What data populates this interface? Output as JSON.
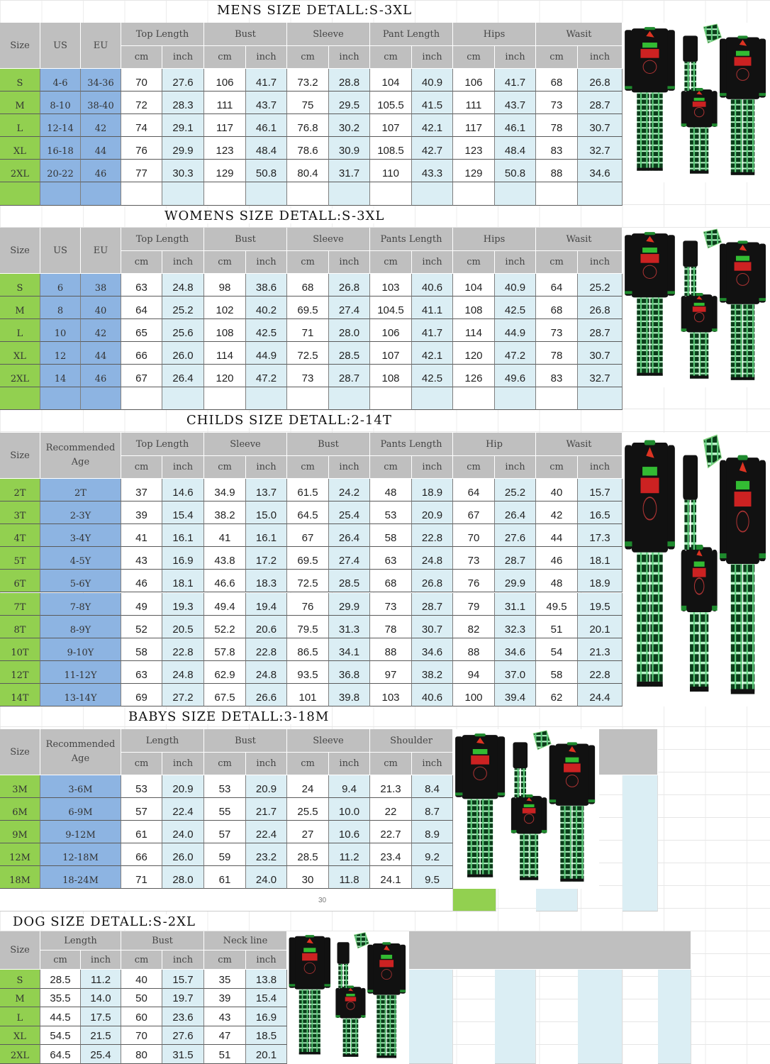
{
  "colors": {
    "header": "#bfbfbf",
    "size_column": "#92d050",
    "us_eu_column": "#8db4e2",
    "inch_column": "#dbeef4"
  },
  "page_number": "30",
  "tables": {
    "mens": {
      "title": "MENS SIZE DETALL:S-3XL",
      "fixed_headers": [
        "Size",
        "US",
        "EU"
      ],
      "groups": [
        "Top Length",
        "Bust",
        "Sleeve",
        "Pant Length",
        "Hips",
        "Wasit"
      ],
      "units": [
        "cm",
        "inch"
      ],
      "rows": [
        [
          "S",
          "4-6",
          "34-36",
          "70",
          "27.6",
          "106",
          "41.7",
          "73.2",
          "28.8",
          "104",
          "40.9",
          "106",
          "41.7",
          "68",
          "26.8"
        ],
        [
          "M",
          "8-10",
          "38-40",
          "72",
          "28.3",
          "111",
          "43.7",
          "75",
          "29.5",
          "105.5",
          "41.5",
          "111",
          "43.7",
          "73",
          "28.7"
        ],
        [
          "L",
          "12-14",
          "42",
          "74",
          "29.1",
          "117",
          "46.1",
          "76.8",
          "30.2",
          "107",
          "42.1",
          "117",
          "46.1",
          "78",
          "30.7"
        ],
        [
          "XL",
          "16-18",
          "44",
          "76",
          "29.9",
          "123",
          "48.4",
          "78.6",
          "30.9",
          "108.5",
          "42.7",
          "123",
          "48.4",
          "83",
          "32.7"
        ],
        [
          "2XL",
          "20-22",
          "46",
          "77",
          "30.3",
          "129",
          "50.8",
          "80.4",
          "31.7",
          "110",
          "43.3",
          "129",
          "50.8",
          "88",
          "34.6"
        ]
      ]
    },
    "womens": {
      "title": "WOMENS SIZE DETALL:S-3XL",
      "fixed_headers": [
        "Size",
        "US",
        "EU"
      ],
      "groups": [
        "Top Length",
        "Bust",
        "Sleeve",
        "Pants Length",
        "Hips",
        "Wasit"
      ],
      "units": [
        "cm",
        "inch"
      ],
      "rows": [
        [
          "S",
          "6",
          "38",
          "63",
          "24.8",
          "98",
          "38.6",
          "68",
          "26.8",
          "103",
          "40.6",
          "104",
          "40.9",
          "64",
          "25.2"
        ],
        [
          "M",
          "8",
          "40",
          "64",
          "25.2",
          "102",
          "40.2",
          "69.5",
          "27.4",
          "104.5",
          "41.1",
          "108",
          "42.5",
          "68",
          "26.8"
        ],
        [
          "L",
          "10",
          "42",
          "65",
          "25.6",
          "108",
          "42.5",
          "71",
          "28.0",
          "106",
          "41.7",
          "114",
          "44.9",
          "73",
          "28.7"
        ],
        [
          "XL",
          "12",
          "44",
          "66",
          "26.0",
          "114",
          "44.9",
          "72.5",
          "28.5",
          "107",
          "42.1",
          "120",
          "47.2",
          "78",
          "30.7"
        ],
        [
          "2XL",
          "14",
          "46",
          "67",
          "26.4",
          "120",
          "47.2",
          "73",
          "28.7",
          "108",
          "42.5",
          "126",
          "49.6",
          "83",
          "32.7"
        ]
      ]
    },
    "childs": {
      "title": "CHILDS SIZE DETALL:2-14T",
      "fixed_headers": [
        "Size",
        "Recommended Age"
      ],
      "groups": [
        "Top Length",
        "Sleeve",
        "Bust",
        "Pants Length",
        "Hip",
        "Wasit"
      ],
      "units": [
        "cm",
        "inch"
      ],
      "rows": [
        [
          "2T",
          "2T",
          "37",
          "14.6",
          "34.9",
          "13.7",
          "61.5",
          "24.2",
          "48",
          "18.9",
          "64",
          "25.2",
          "40",
          "15.7"
        ],
        [
          "3T",
          "2-3Y",
          "39",
          "15.4",
          "38.2",
          "15.0",
          "64.5",
          "25.4",
          "53",
          "20.9",
          "67",
          "26.4",
          "42",
          "16.5"
        ],
        [
          "4T",
          "3-4Y",
          "41",
          "16.1",
          "41",
          "16.1",
          "67",
          "26.4",
          "58",
          "22.8",
          "70",
          "27.6",
          "44",
          "17.3"
        ],
        [
          "5T",
          "4-5Y",
          "43",
          "16.9",
          "43.8",
          "17.2",
          "69.5",
          "27.4",
          "63",
          "24.8",
          "73",
          "28.7",
          "46",
          "18.1"
        ],
        [
          "6T",
          "5-6Y",
          "46",
          "18.1",
          "46.6",
          "18.3",
          "72.5",
          "28.5",
          "68",
          "26.8",
          "76",
          "29.9",
          "48",
          "18.9"
        ],
        [
          "7T",
          "7-8Y",
          "49",
          "19.3",
          "49.4",
          "19.4",
          "76",
          "29.9",
          "73",
          "28.7",
          "79",
          "31.1",
          "49.5",
          "19.5"
        ],
        [
          "8T",
          "8-9Y",
          "52",
          "20.5",
          "52.2",
          "20.6",
          "79.5",
          "31.3",
          "78",
          "30.7",
          "82",
          "32.3",
          "51",
          "20.1"
        ],
        [
          "10T",
          "9-10Y",
          "58",
          "22.8",
          "57.8",
          "22.8",
          "86.5",
          "34.1",
          "88",
          "34.6",
          "88",
          "34.6",
          "54",
          "21.3"
        ],
        [
          "12T",
          "11-12Y",
          "63",
          "24.8",
          "62.9",
          "24.8",
          "93.5",
          "36.8",
          "97",
          "38.2",
          "94",
          "37.0",
          "58",
          "22.8"
        ],
        [
          "14T",
          "13-14Y",
          "69",
          "27.2",
          "67.5",
          "26.6",
          "101",
          "39.8",
          "103",
          "40.6",
          "100",
          "39.4",
          "62",
          "24.4"
        ]
      ]
    },
    "babys": {
      "title": "BABYS SIZE DETALL:3-18M",
      "fixed_headers": [
        "Size",
        "Recommended Age"
      ],
      "groups": [
        "Length",
        "Bust",
        "Sleeve",
        "Shoulder"
      ],
      "units": [
        "cm",
        "inch"
      ],
      "rows": [
        [
          "3M",
          "3-6M",
          "53",
          "20.9",
          "53",
          "20.9",
          "24",
          "9.4",
          "21.3",
          "8.4"
        ],
        [
          "6M",
          "6-9M",
          "57",
          "22.4",
          "55",
          "21.7",
          "25.5",
          "10.0",
          "22",
          "8.7"
        ],
        [
          "9M",
          "9-12M",
          "61",
          "24.0",
          "57",
          "22.4",
          "27",
          "10.6",
          "22.7",
          "8.9"
        ],
        [
          "12M",
          "12-18M",
          "66",
          "26.0",
          "59",
          "23.2",
          "28.5",
          "11.2",
          "23.4",
          "9.2"
        ],
        [
          "18M",
          "18-24M",
          "71",
          "28.0",
          "61",
          "24.0",
          "30",
          "11.8",
          "24.1",
          "9.5"
        ]
      ]
    },
    "dog": {
      "title": "DOG SIZE DETALL:S-2XL",
      "fixed_headers": [
        "Size"
      ],
      "groups": [
        "Length",
        "Bust",
        "Neck line"
      ],
      "units": [
        "cm",
        "inch"
      ],
      "rows": [
        [
          "S",
          "28.5",
          "11.2",
          "40",
          "15.7",
          "35",
          "13.8"
        ],
        [
          "M",
          "35.5",
          "14.0",
          "50",
          "19.7",
          "39",
          "15.4"
        ],
        [
          "L",
          "44.5",
          "17.5",
          "60",
          "23.6",
          "43",
          "16.9"
        ],
        [
          "XL",
          "54.5",
          "21.5",
          "70",
          "27.6",
          "47",
          "18.5"
        ],
        [
          "2XL",
          "64.5",
          "25.4",
          "80",
          "31.5",
          "51",
          "20.1"
        ]
      ]
    }
  }
}
